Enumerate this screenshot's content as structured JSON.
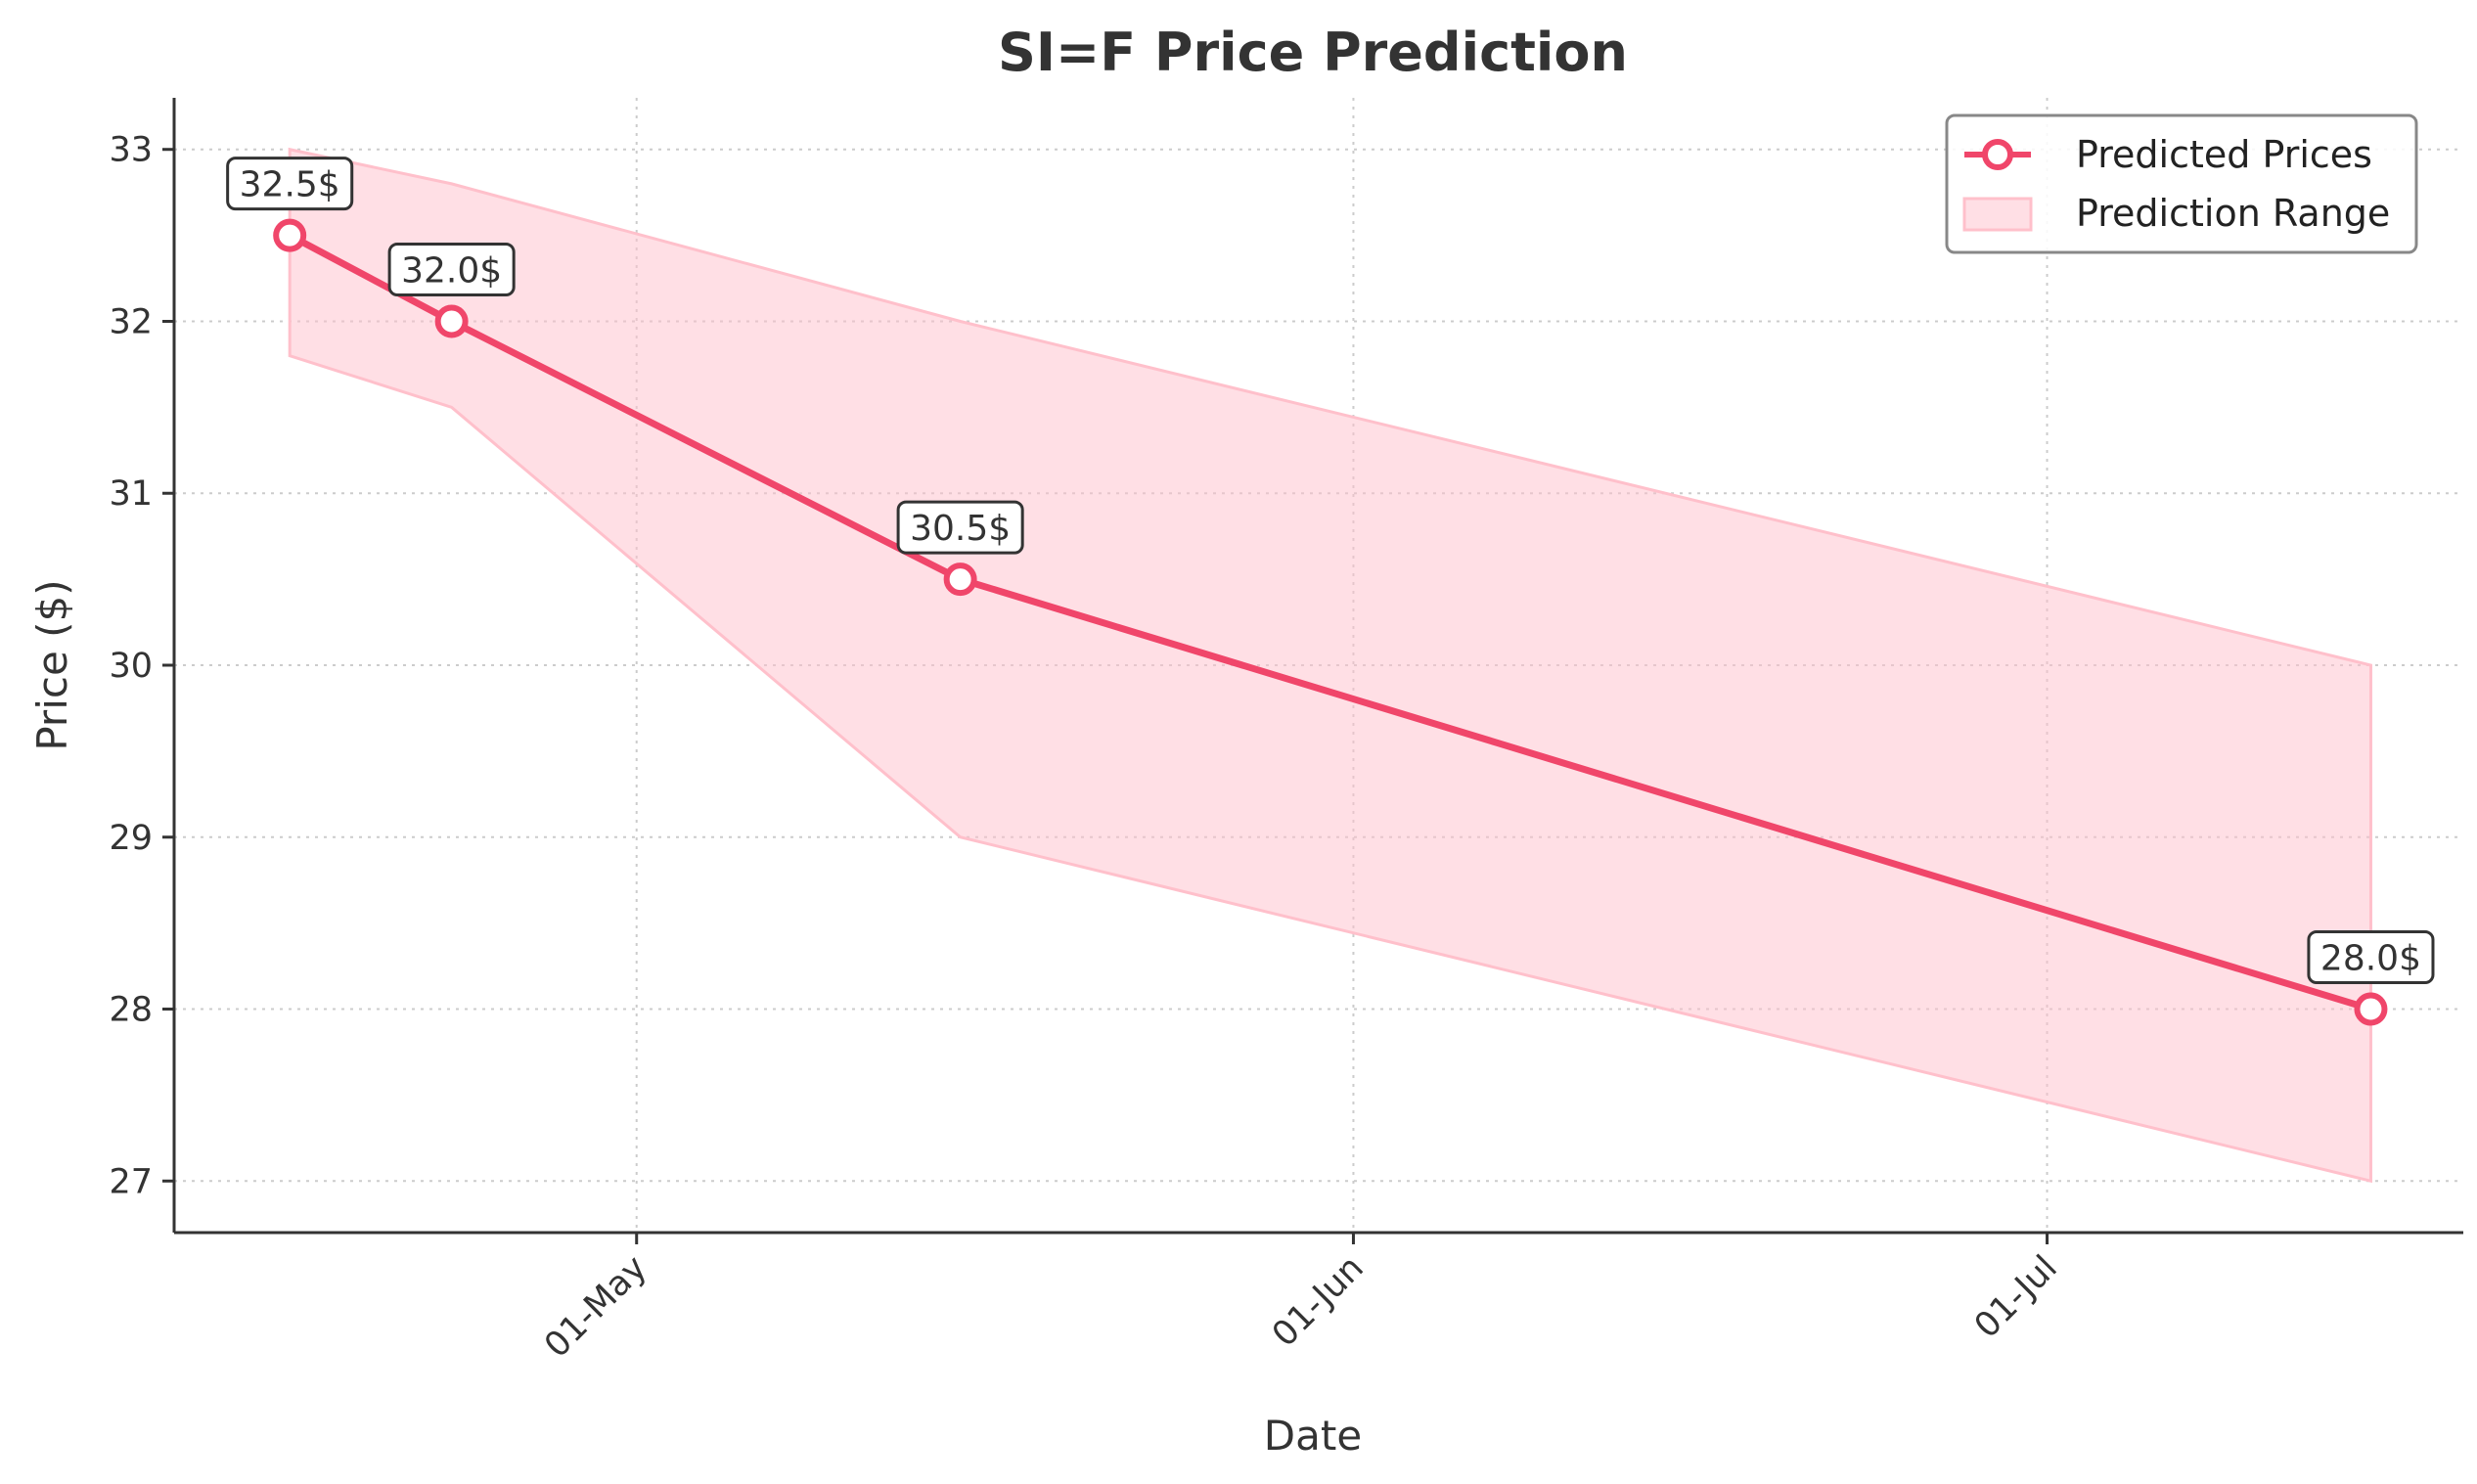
{
  "chart_data": {
    "type": "line",
    "title": "SI=F Price Prediction",
    "xlabel": "Date",
    "ylabel": "Price ($)",
    "x_ticks": [
      {
        "date": "2025-05-01",
        "label": "01-May"
      },
      {
        "date": "2025-06-01",
        "label": "01-Jun"
      },
      {
        "date": "2025-07-01",
        "label": "01-Jul"
      }
    ],
    "y_ticks": [
      27,
      28,
      29,
      30,
      31,
      32,
      33
    ],
    "xlim": [
      "2025-04-11",
      "2025-07-19"
    ],
    "ylim": [
      26.7,
      33.3
    ],
    "grid": true,
    "legend_position": "top-right",
    "series": [
      {
        "name": "Predicted Prices",
        "color": "#f0466a",
        "points": [
          {
            "x": "2025-04-16",
            "y": 32.5,
            "label": "32.5$"
          },
          {
            "x": "2025-04-23",
            "y": 32.0,
            "label": "32.0$"
          },
          {
            "x": "2025-05-15",
            "y": 30.5,
            "label": "30.5$"
          },
          {
            "x": "2025-07-15",
            "y": 28.0,
            "label": "28.0$"
          }
        ]
      }
    ],
    "range": {
      "name": "Prediction Range",
      "color": "#ffc0cb",
      "points": [
        {
          "x": "2025-04-16",
          "low": 31.8,
          "high": 33.0
        },
        {
          "x": "2025-04-23",
          "low": 31.5,
          "high": 32.8
        },
        {
          "x": "2025-05-15",
          "low": 29.0,
          "high": 32.0
        },
        {
          "x": "2025-07-15",
          "low": 27.0,
          "high": 30.0
        }
      ]
    }
  }
}
